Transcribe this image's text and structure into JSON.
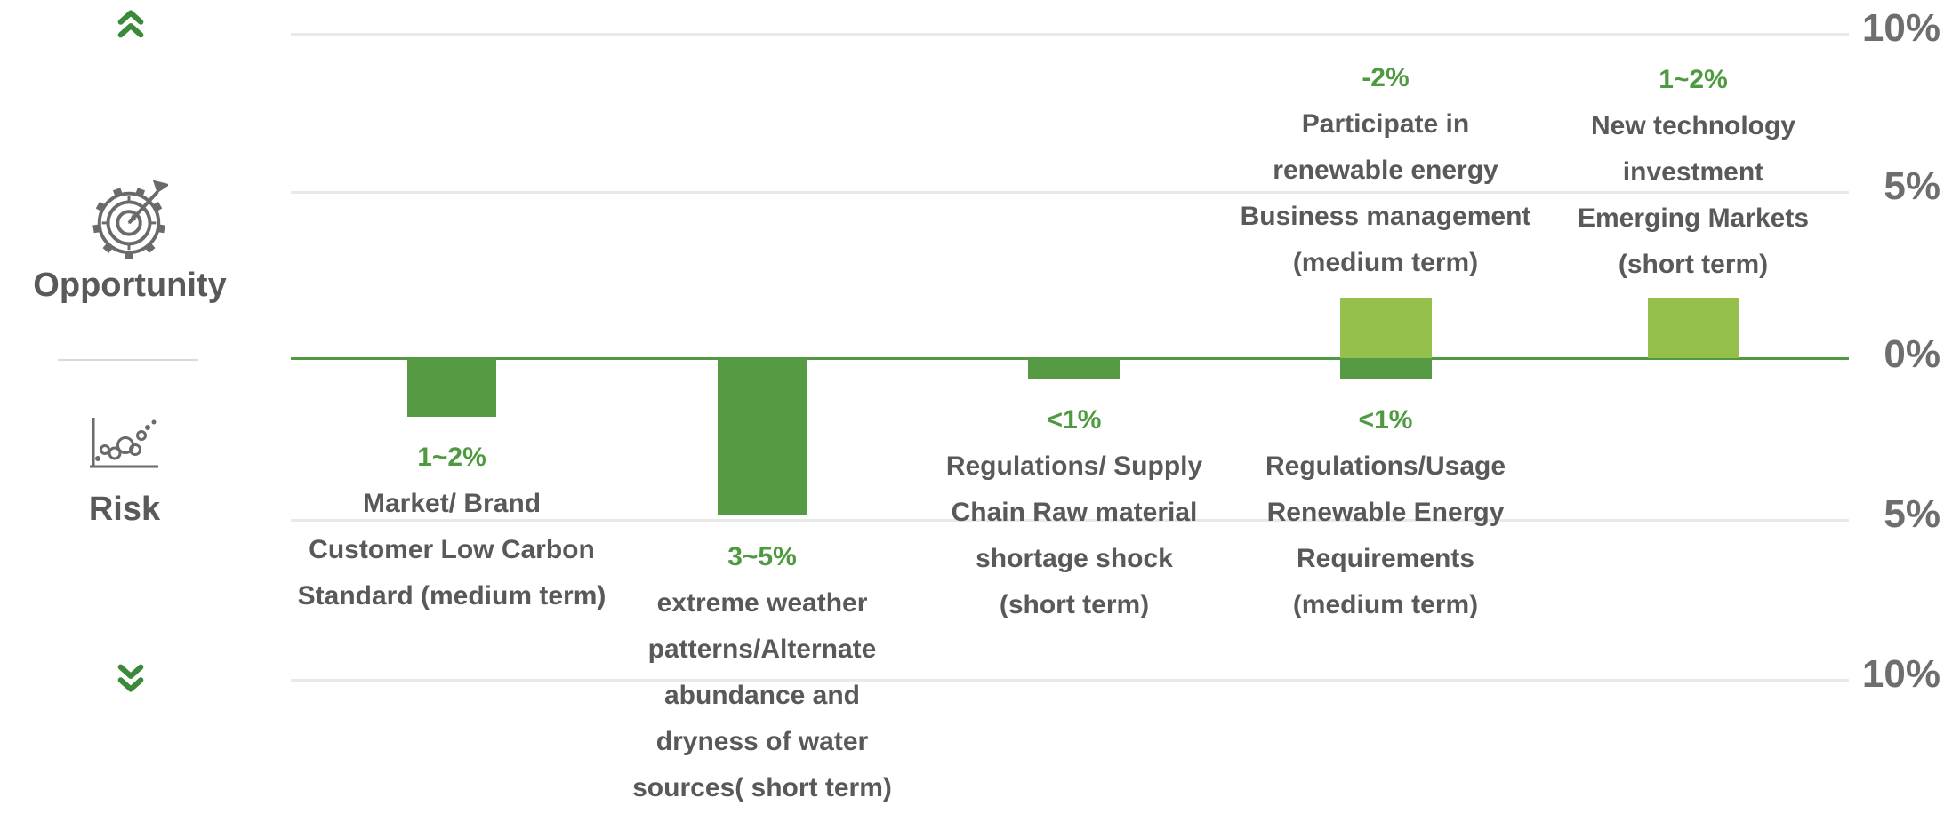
{
  "colors": {
    "risk_bar": "#579a44",
    "opportunity_bar": "#95c04b",
    "axis_line": "#4f9a41",
    "value_text": "#4f9a41",
    "body_text": "#595959",
    "tick_text": "#6e6e6e",
    "gridline": "#e9e9e9",
    "icon_stroke": "#6a6a6a",
    "chevron": "#3a8a3a",
    "divider": "#d9d9d9"
  },
  "left_rail": {
    "opportunity_label": "Opportunity",
    "risk_label": "Risk"
  },
  "y_axis": {
    "tick_labels": [
      "10%",
      "5%",
      "0%",
      "5%",
      "10%"
    ]
  },
  "chart_data": {
    "type": "bar",
    "orientation": "vertical",
    "title": "",
    "xlabel": "",
    "ylabel": "",
    "y_axis": {
      "tick_labels": [
        "10%",
        "5%",
        "0%",
        "5%",
        "10%"
      ],
      "implied_range_pct": [
        -10,
        10
      ],
      "gridlines": true,
      "zero_line_color": "#4f9a41"
    },
    "legend": {
      "position": "left",
      "up_means": "Opportunity",
      "down_means": "Risk"
    },
    "series_colors": {
      "risk": "#579a44",
      "opportunity": "#95c04b"
    },
    "columns": [
      {
        "name": "market-brand-low-carbon-risk",
        "value_label": "1~2%",
        "lines": [
          "Market/ Brand",
          "Customer Low Carbon",
          "Standard (medium term)"
        ],
        "impact_pct": -1.8
      },
      {
        "name": "extreme-weather-water-risk",
        "value_label": "3~5%",
        "lines": [
          "extreme weather",
          "patterns/Alternate",
          "abundance and",
          "dryness of water",
          "sources( short term)"
        ],
        "impact_pct": -4.85
      },
      {
        "name": "supply-chain-raw-material-risk",
        "value_label": "<1%",
        "lines": [
          "Regulations/ Supply",
          "Chain Raw material",
          "shortage shock",
          "(short term)"
        ],
        "impact_pct": -0.66
      },
      {
        "name": "renewable-energy-participation",
        "opportunity": {
          "value_label": "-2%",
          "lines": [
            "Participate in",
            "renewable energy",
            "Business management",
            "(medium term)"
          ],
          "impact_pct": 1.85
        },
        "risk": {
          "value_label": "<1%",
          "lines": [
            "Regulations/Usage",
            "Renewable Energy",
            "Requirements",
            "(medium term)"
          ],
          "impact_pct": -0.66
        }
      },
      {
        "name": "new-technology-investment-opportunity",
        "value_label": "1~2%",
        "lines": [
          "New technology",
          "investment",
          "Emerging Markets",
          "(short term)"
        ],
        "impact_pct": 1.85
      }
    ]
  }
}
